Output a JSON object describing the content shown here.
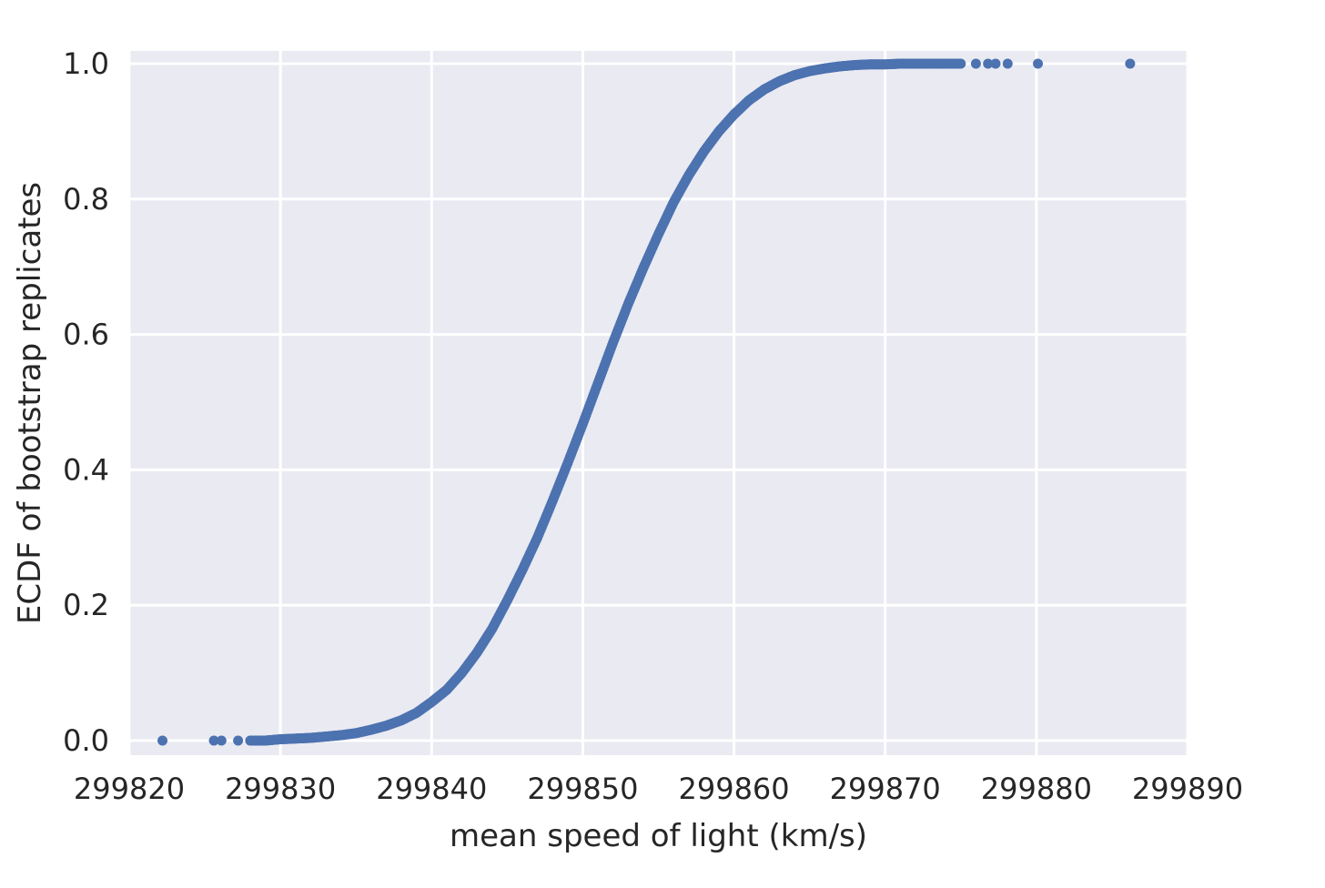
{
  "chart_data": {
    "type": "scatter",
    "title": "",
    "xlabel": "mean speed of light (km/s)",
    "ylabel": "ECDF of bootstrap replicates",
    "xlim": [
      299820,
      299890
    ],
    "ylim": [
      0.0,
      1.0
    ],
    "xticks": [
      "299820",
      "299830",
      "299840",
      "299850",
      "299860",
      "299870",
      "299880",
      "299890"
    ],
    "yticks": [
      "0.0",
      "0.2",
      "0.4",
      "0.6",
      "0.8",
      "1.0"
    ],
    "grid": true,
    "background_color": "#eaeaf2",
    "grid_color": "#ffffff",
    "marker_color": "#4c72b0",
    "series": [
      {
        "x": [
          299822.2,
          299825.6,
          299826.1,
          299827.2,
          299828.0,
          299829.0,
          299830.0,
          299831.0,
          299832.0,
          299833.0,
          299834.0,
          299835.0,
          299836.0,
          299837.0,
          299838.0,
          299839.0,
          299840.0,
          299841.0,
          299842.0,
          299843.0,
          299844.0,
          299845.0,
          299846.0,
          299847.0,
          299848.0,
          299849.0,
          299850.0,
          299851.0,
          299852.0,
          299853.0,
          299854.0,
          299855.0,
          299856.0,
          299857.0,
          299858.0,
          299859.0,
          299860.0,
          299861.0,
          299862.0,
          299863.0,
          299864.0,
          299865.0,
          299866.0,
          299867.0,
          299868.0,
          299869.0,
          299870.0,
          299871.0,
          299872.0,
          299873.0,
          299874.0,
          299875.0,
          299876.0,
          299876.8,
          299877.3,
          299878.1,
          299880.1,
          299886.2
        ],
        "y": [
          0.0,
          0.0,
          0.0,
          0.0,
          0.0,
          0.0,
          0.002,
          0.003,
          0.004,
          0.006,
          0.008,
          0.011,
          0.016,
          0.022,
          0.03,
          0.041,
          0.057,
          0.075,
          0.1,
          0.13,
          0.165,
          0.207,
          0.252,
          0.3,
          0.354,
          0.41,
          0.468,
          0.528,
          0.588,
          0.645,
          0.698,
          0.748,
          0.795,
          0.835,
          0.87,
          0.9,
          0.925,
          0.946,
          0.962,
          0.974,
          0.983,
          0.989,
          0.993,
          0.996,
          0.998,
          0.999,
          0.999,
          1.0,
          1.0,
          1.0,
          1.0,
          1.0,
          1.0,
          1.0,
          1.0,
          1.0,
          1.0,
          1.0
        ]
      }
    ]
  }
}
